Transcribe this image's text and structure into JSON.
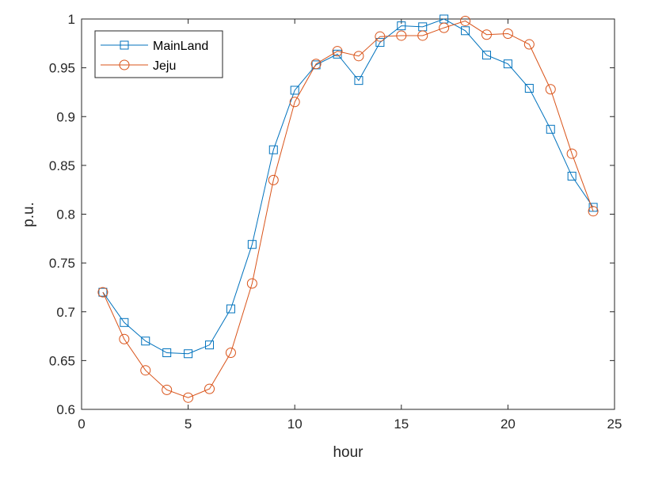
{
  "chart_data": {
    "type": "line",
    "title": "",
    "xlabel": "hour",
    "ylabel": "p.u.",
    "xlim": [
      0,
      25
    ],
    "ylim": [
      0.6,
      1.0
    ],
    "xticks": [
      "0",
      "5",
      "10",
      "15",
      "20",
      "25"
    ],
    "yticks": [
      "0.6",
      "0.65",
      "0.7",
      "0.75",
      "0.8",
      "0.85",
      "0.9",
      "0.95",
      "1"
    ],
    "grid": false,
    "legend_position": "top-left",
    "x": [
      1,
      2,
      3,
      4,
      5,
      6,
      7,
      8,
      9,
      10,
      11,
      12,
      13,
      14,
      15,
      16,
      17,
      18,
      19,
      20,
      21,
      22,
      23,
      24
    ],
    "series": [
      {
        "name": "MainLand",
        "color": "#0072BD",
        "marker": "square",
        "values": [
          0.72,
          0.689,
          0.67,
          0.658,
          0.657,
          0.666,
          0.703,
          0.769,
          0.866,
          0.927,
          0.953,
          0.964,
          0.937,
          0.976,
          0.993,
          0.992,
          1.0,
          0.988,
          0.963,
          0.954,
          0.929,
          0.887,
          0.839,
          0.807
        ]
      },
      {
        "name": "Jeju",
        "color": "#D95319",
        "marker": "circle",
        "values": [
          0.72,
          0.672,
          0.64,
          0.62,
          0.612,
          0.621,
          0.658,
          0.729,
          0.835,
          0.915,
          0.954,
          0.967,
          0.962,
          0.982,
          0.983,
          0.983,
          0.991,
          0.998,
          0.984,
          0.985,
          0.974,
          0.928,
          0.862,
          0.803
        ]
      }
    ]
  }
}
